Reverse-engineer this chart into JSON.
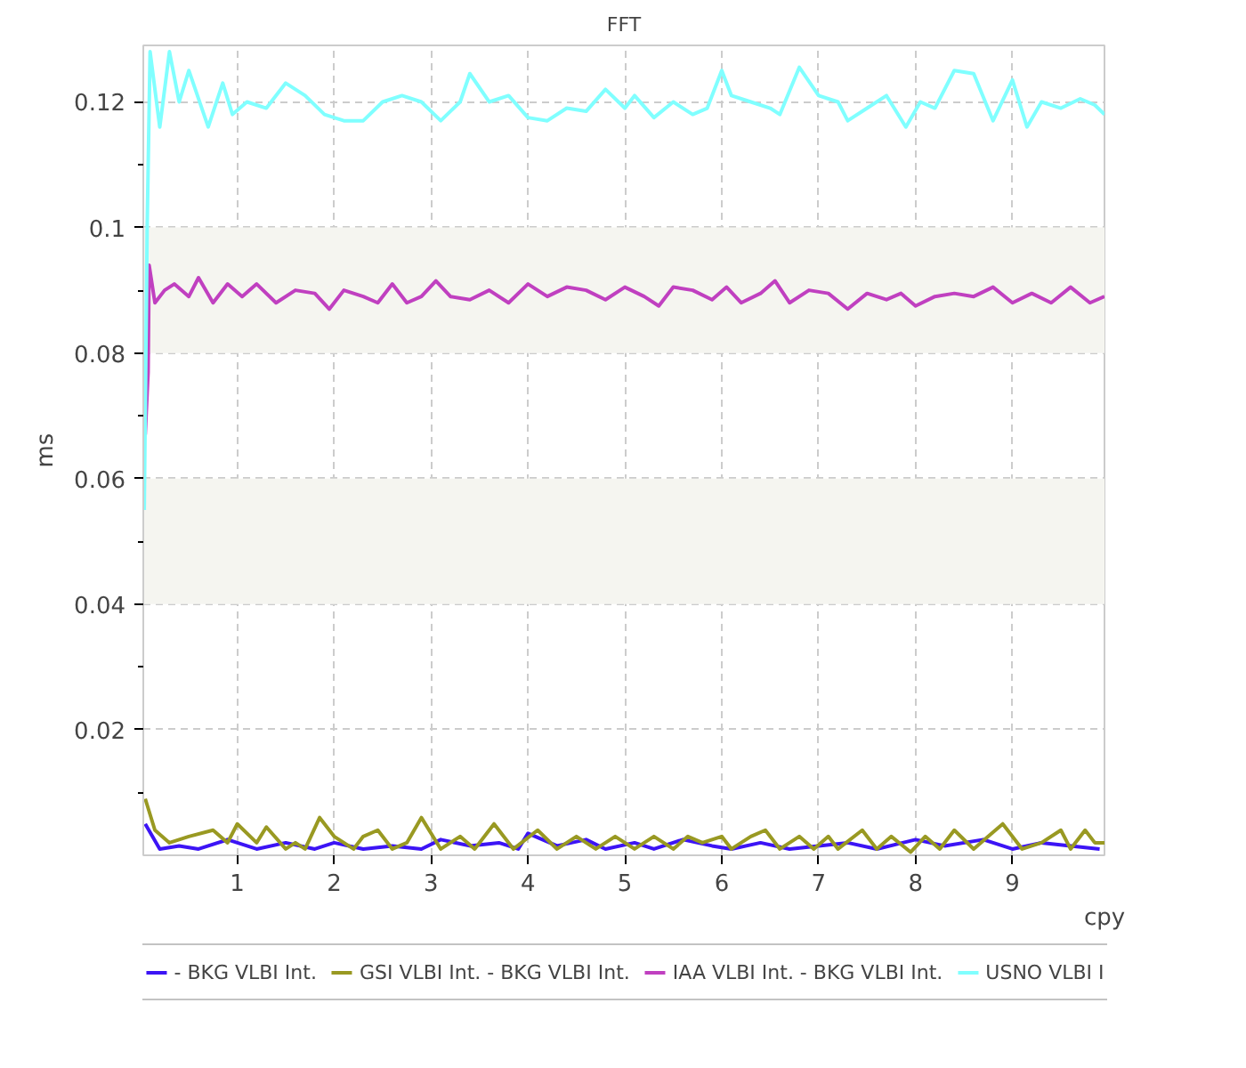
{
  "chart_data": {
    "type": "line",
    "title": "FFT",
    "xlabel": "cpy",
    "ylabel": "ms",
    "xlim": [
      0.03,
      9.95
    ],
    "ylim": [
      0,
      0.129
    ],
    "xticks": [
      1,
      2,
      3,
      4,
      5,
      6,
      7,
      8,
      9
    ],
    "yticks": [
      {
        "value": 0.01,
        "label": null
      },
      0.02,
      {
        "value": 0.03,
        "label": null
      },
      0.04,
      {
        "value": 0.05,
        "label": null
      },
      0.06,
      {
        "value": 0.07,
        "label": null
      },
      0.08,
      {
        "value": 0.09,
        "label": null
      },
      0.1,
      {
        "value": 0.11,
        "label": null
      },
      0.12
    ],
    "grid": true,
    "legend": "bottom",
    "line_style": "solid",
    "series": [
      {
        "name": "- BKG VLBI Int.",
        "color": "#3c14f5",
        "x": [
          0.05,
          0.2,
          0.4,
          0.6,
          0.9,
          1.2,
          1.5,
          1.8,
          2.0,
          2.3,
          2.6,
          2.9,
          3.1,
          3.4,
          3.7,
          3.9,
          4.0,
          4.3,
          4.6,
          4.8,
          5.1,
          5.3,
          5.6,
          5.9,
          6.1,
          6.4,
          6.7,
          7.0,
          7.3,
          7.6,
          8.0,
          8.3,
          8.7,
          9.0,
          9.3,
          9.6,
          9.9
        ],
        "values": [
          0.005,
          0.001,
          0.0015,
          0.001,
          0.0025,
          0.001,
          0.002,
          0.001,
          0.002,
          0.001,
          0.0015,
          0.001,
          0.0025,
          0.0015,
          0.002,
          0.001,
          0.0035,
          0.0015,
          0.0025,
          0.001,
          0.002,
          0.001,
          0.0025,
          0.0015,
          0.001,
          0.002,
          0.001,
          0.0015,
          0.002,
          0.001,
          0.0025,
          0.0015,
          0.0025,
          0.001,
          0.002,
          0.0015,
          0.001
        ]
      },
      {
        "name": "GSI VLBI Int. - BKG VLBI Int.",
        "color": "#999922",
        "x": [
          0.05,
          0.15,
          0.3,
          0.5,
          0.75,
          0.9,
          1.0,
          1.2,
          1.3,
          1.5,
          1.6,
          1.7,
          1.85,
          2.0,
          2.2,
          2.3,
          2.45,
          2.6,
          2.75,
          2.9,
          3.1,
          3.3,
          3.45,
          3.65,
          3.85,
          4.1,
          4.3,
          4.5,
          4.7,
          4.9,
          5.1,
          5.3,
          5.5,
          5.65,
          5.8,
          6.0,
          6.1,
          6.3,
          6.45,
          6.6,
          6.8,
          6.95,
          7.1,
          7.2,
          7.45,
          7.6,
          7.75,
          7.95,
          8.1,
          8.25,
          8.4,
          8.6,
          8.75,
          8.9,
          9.1,
          9.3,
          9.5,
          9.6,
          9.75,
          9.85,
          9.95
        ],
        "values": [
          0.009,
          0.004,
          0.002,
          0.003,
          0.004,
          0.002,
          0.005,
          0.002,
          0.0045,
          0.001,
          0.002,
          0.001,
          0.006,
          0.003,
          0.001,
          0.003,
          0.004,
          0.001,
          0.002,
          0.006,
          0.001,
          0.003,
          0.001,
          0.005,
          0.001,
          0.004,
          0.001,
          0.003,
          0.001,
          0.003,
          0.001,
          0.003,
          0.001,
          0.003,
          0.002,
          0.003,
          0.001,
          0.003,
          0.004,
          0.001,
          0.003,
          0.001,
          0.003,
          0.001,
          0.004,
          0.001,
          0.003,
          0.0005,
          0.003,
          0.001,
          0.004,
          0.001,
          0.003,
          0.005,
          0.001,
          0.002,
          0.004,
          0.001,
          0.004,
          0.002,
          0.002
        ]
      },
      {
        "name": "IAA VLBI Int. - BKG VLBI Int.",
        "color": "#c040c0",
        "x": [
          0.05,
          0.08,
          0.09,
          0.15,
          0.25,
          0.35,
          0.5,
          0.6,
          0.75,
          0.9,
          1.05,
          1.2,
          1.4,
          1.6,
          1.8,
          1.95,
          2.1,
          2.3,
          2.45,
          2.6,
          2.75,
          2.9,
          3.05,
          3.2,
          3.4,
          3.6,
          3.8,
          4.0,
          4.2,
          4.4,
          4.6,
          4.8,
          5.0,
          5.2,
          5.35,
          5.5,
          5.7,
          5.9,
          6.05,
          6.2,
          6.4,
          6.55,
          6.7,
          6.9,
          7.1,
          7.3,
          7.5,
          7.7,
          7.85,
          8.0,
          8.2,
          8.4,
          8.6,
          8.8,
          9.0,
          9.2,
          9.4,
          9.6,
          9.8,
          9.95
        ],
        "values": [
          0.067,
          0.077,
          0.094,
          0.088,
          0.09,
          0.091,
          0.089,
          0.092,
          0.088,
          0.091,
          0.089,
          0.091,
          0.088,
          0.09,
          0.0895,
          0.087,
          0.09,
          0.089,
          0.088,
          0.091,
          0.088,
          0.089,
          0.0915,
          0.089,
          0.0885,
          0.09,
          0.088,
          0.091,
          0.089,
          0.0905,
          0.09,
          0.0885,
          0.0905,
          0.089,
          0.0875,
          0.0905,
          0.09,
          0.0885,
          0.0905,
          0.088,
          0.0895,
          0.0915,
          0.088,
          0.09,
          0.0895,
          0.087,
          0.0895,
          0.0885,
          0.0895,
          0.0875,
          0.089,
          0.0895,
          0.089,
          0.0905,
          0.088,
          0.0895,
          0.088,
          0.0905,
          0.088,
          0.089
        ]
      },
      {
        "name": "USNO VLBI I",
        "color": "#80ffff",
        "x": [
          0.04,
          0.07,
          0.1,
          0.2,
          0.3,
          0.4,
          0.5,
          0.7,
          0.85,
          0.95,
          1.1,
          1.3,
          1.5,
          1.7,
          1.9,
          2.1,
          2.3,
          2.5,
          2.7,
          2.9,
          3.1,
          3.3,
          3.4,
          3.6,
          3.8,
          4.0,
          4.2,
          4.4,
          4.6,
          4.8,
          5.0,
          5.1,
          5.3,
          5.5,
          5.7,
          5.85,
          6.0,
          6.1,
          6.3,
          6.5,
          6.6,
          6.8,
          7.0,
          7.2,
          7.3,
          7.5,
          7.7,
          7.9,
          8.05,
          8.2,
          8.4,
          8.6,
          8.8,
          9.0,
          9.15,
          9.3,
          9.5,
          9.7,
          9.85,
          9.95
        ],
        "values": [
          0.055,
          0.1,
          0.128,
          0.116,
          0.128,
          0.12,
          0.125,
          0.116,
          0.123,
          0.118,
          0.12,
          0.119,
          0.123,
          0.121,
          0.118,
          0.117,
          0.117,
          0.12,
          0.121,
          0.12,
          0.117,
          0.12,
          0.1245,
          0.12,
          0.121,
          0.1175,
          0.117,
          0.119,
          0.1185,
          0.122,
          0.119,
          0.121,
          0.1175,
          0.12,
          0.118,
          0.119,
          0.125,
          0.121,
          0.12,
          0.119,
          0.118,
          0.1255,
          0.121,
          0.12,
          0.117,
          0.119,
          0.121,
          0.116,
          0.12,
          0.119,
          0.125,
          0.1245,
          0.117,
          0.1235,
          0.116,
          0.12,
          0.119,
          0.1205,
          0.1195,
          0.118
        ]
      }
    ]
  }
}
